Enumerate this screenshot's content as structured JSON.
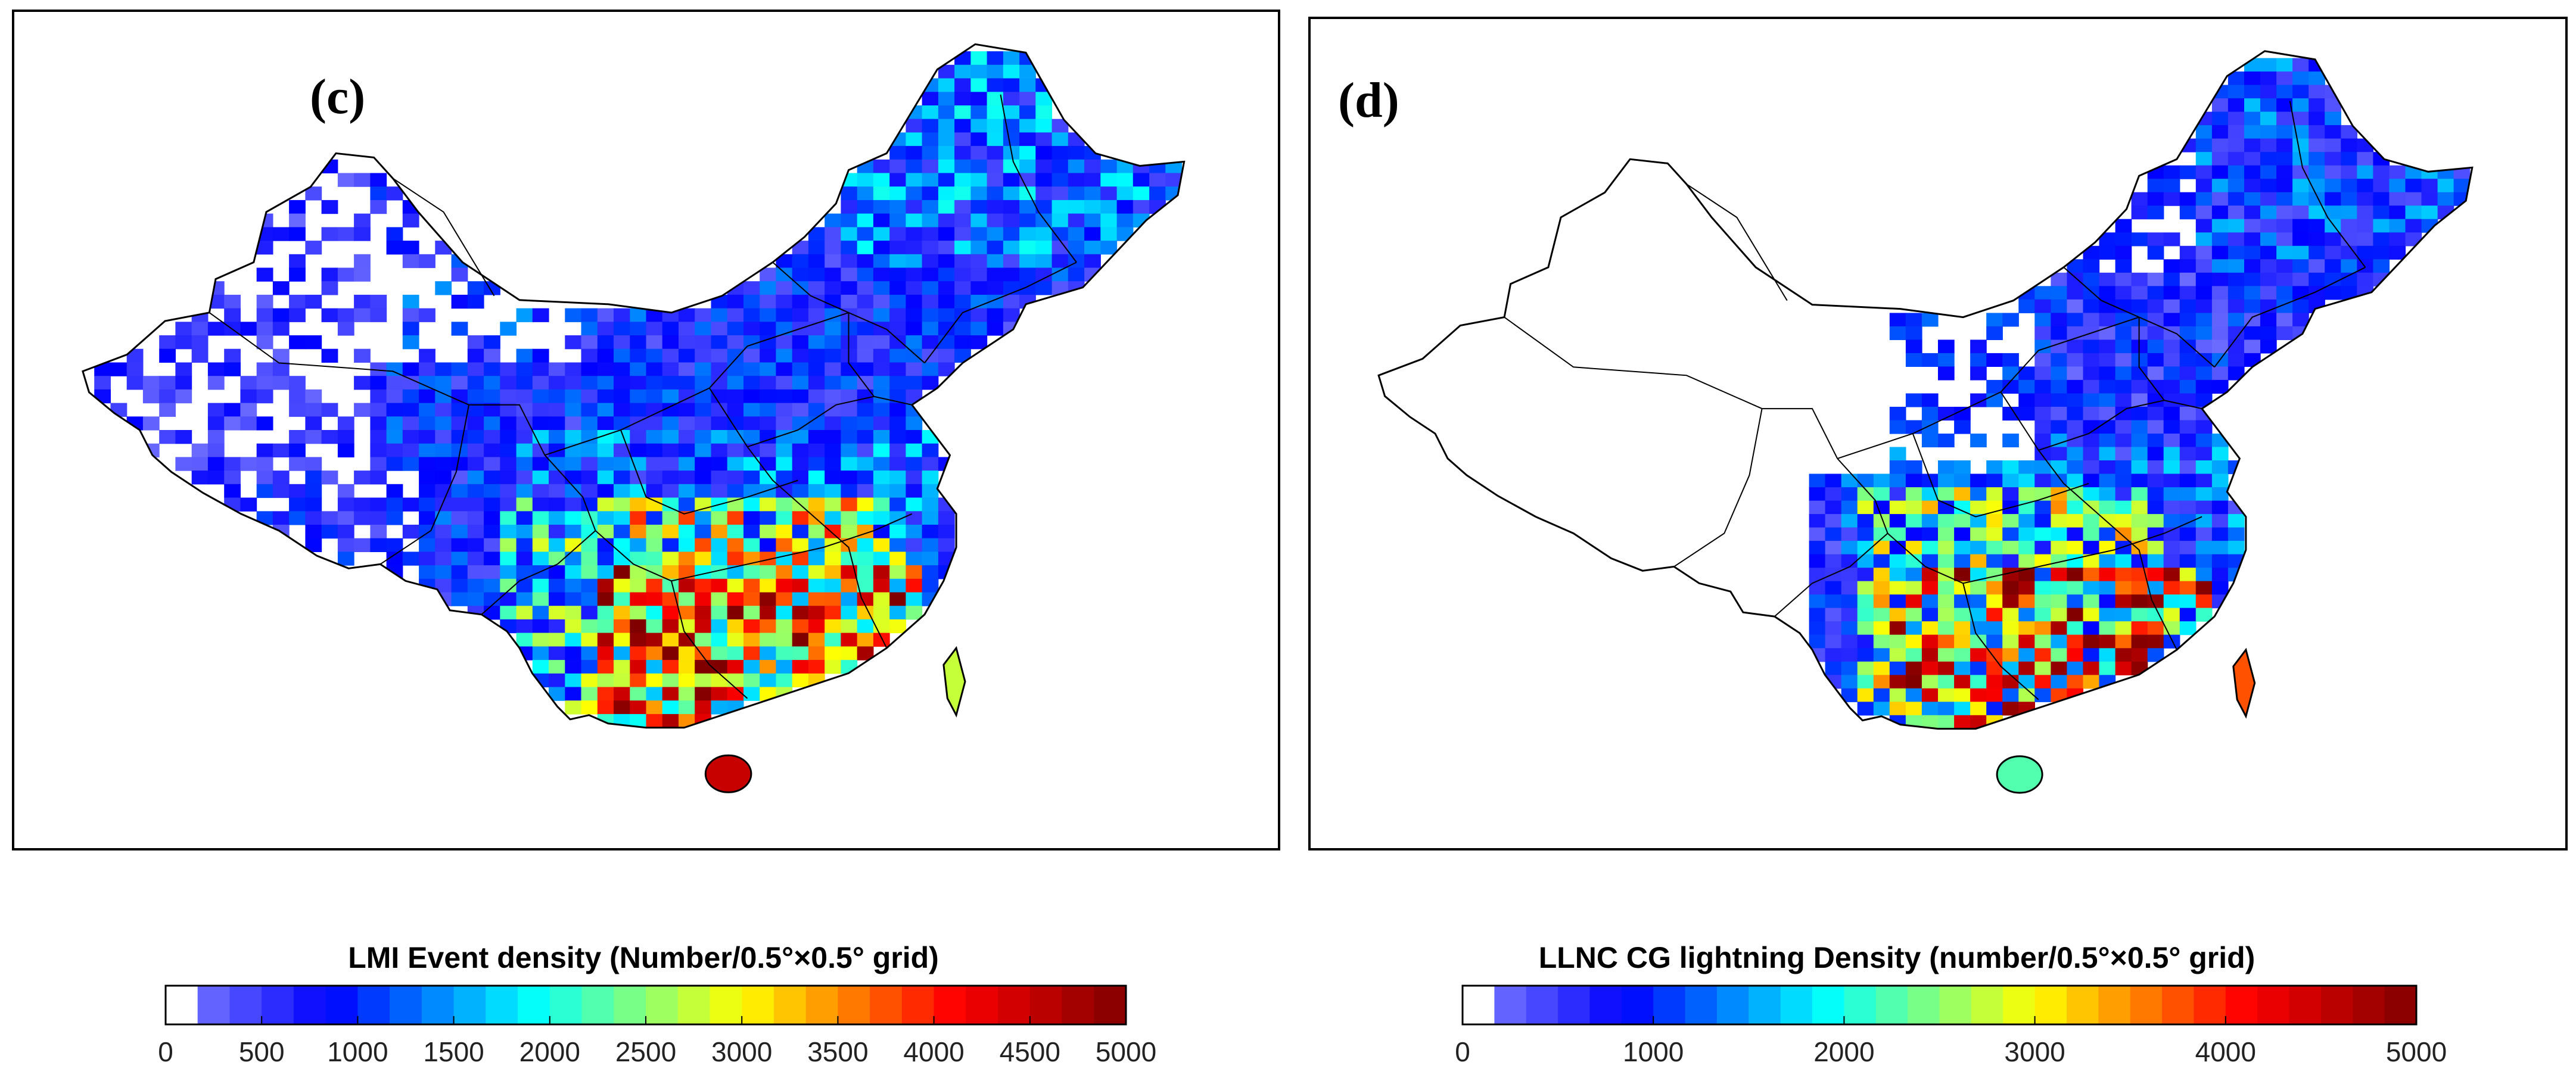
{
  "panels": [
    {
      "label": "(c)",
      "colorbar": {
        "title": "LMI Event density (Number/0.5°×0.5° grid)",
        "min": 0,
        "max": 5000,
        "ticks": [
          "0",
          "500",
          "1000",
          "1500",
          "2000",
          "2500",
          "3000",
          "3500",
          "4000",
          "4500",
          "5000"
        ],
        "tick_values": [
          0,
          500,
          1000,
          1500,
          2000,
          2500,
          3000,
          3500,
          4000,
          4500,
          5000
        ]
      },
      "pattern": "lmi"
    },
    {
      "label": "(d)",
      "colorbar": {
        "title": "LLNC CG lightning Density (number/0.5°×0.5° grid)",
        "min": 0,
        "max": 5000,
        "ticks": [
          "0",
          "1000",
          "2000",
          "3000",
          "4000",
          "5000"
        ],
        "tick_values": [
          0,
          1000,
          2000,
          3000,
          4000,
          5000
        ]
      },
      "pattern": "llnc"
    }
  ],
  "colormap": {
    "name": "jet",
    "zero_color": "#ffffff",
    "stops": [
      "#8c8cff",
      "#0000ff",
      "#00ffff",
      "#ffff00",
      "#ff0000",
      "#800000"
    ]
  }
}
